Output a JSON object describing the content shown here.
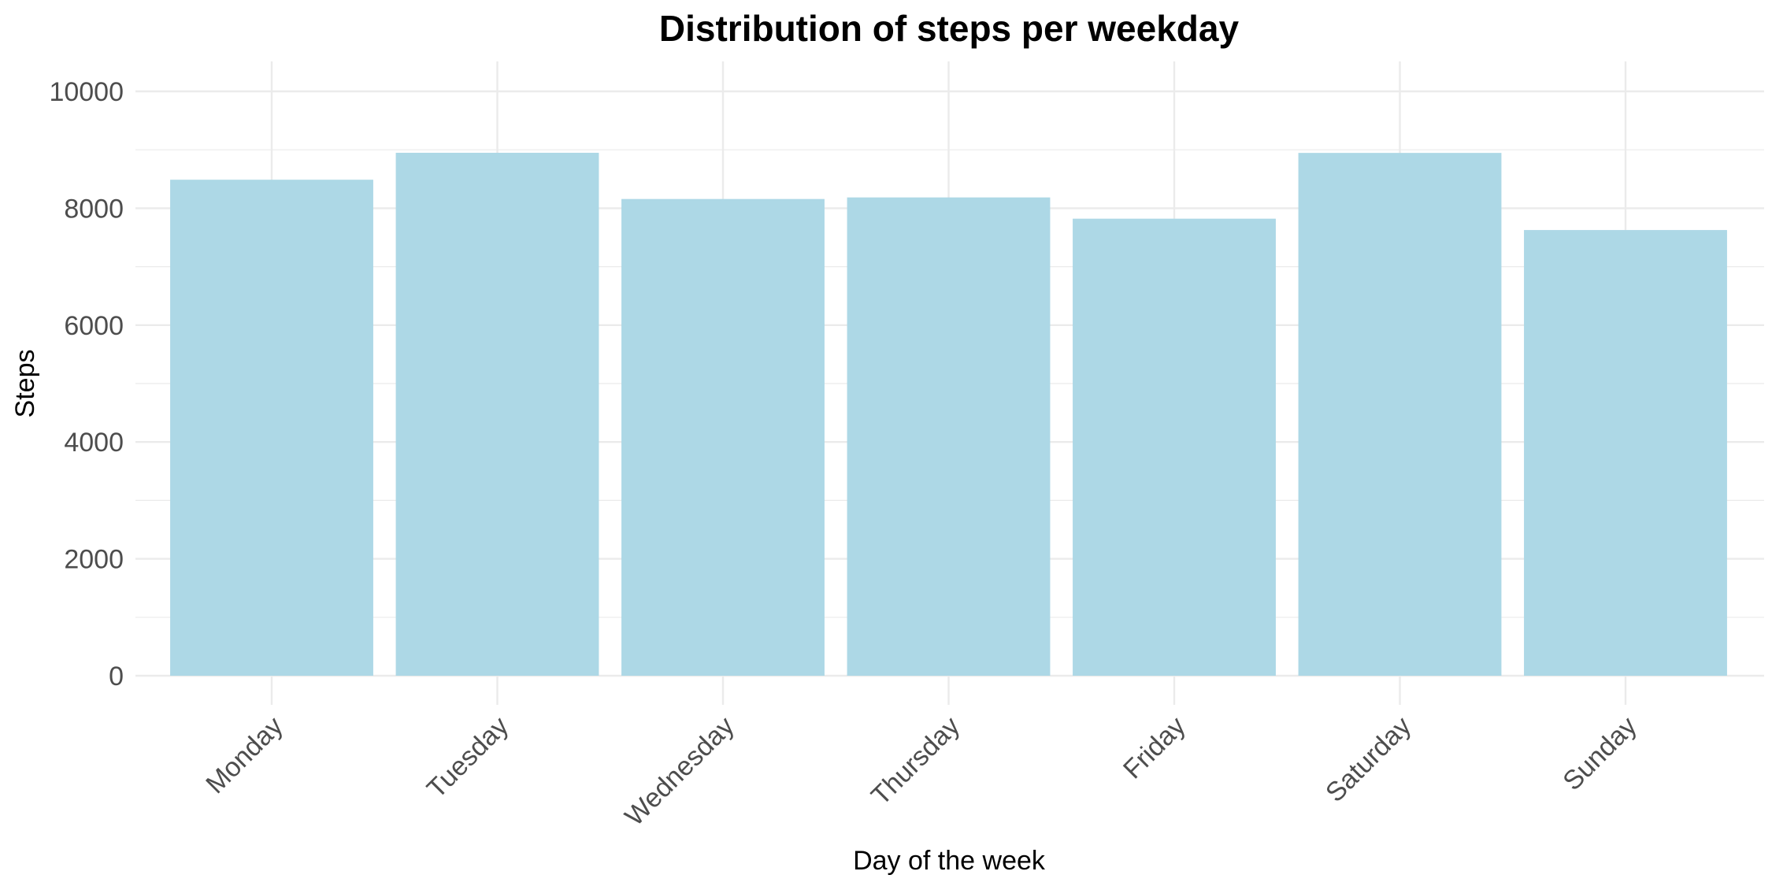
{
  "chart_data": {
    "type": "bar",
    "title": "Distribution of steps per weekday",
    "xlabel": "Day of the week",
    "ylabel": "Steps",
    "categories": [
      "Monday",
      "Tuesday",
      "Wednesday",
      "Thursday",
      "Friday",
      "Saturday",
      "Sunday"
    ],
    "values": [
      8488,
      8949,
      8158,
      8185,
      7821,
      8947,
      7627
    ],
    "ylim": [
      0,
      10000
    ],
    "yticks": [
      "0",
      "2000",
      "4000",
      "6000",
      "8000",
      "10000"
    ],
    "grid": true,
    "legend": "none",
    "bar_color": "#ADD8E6",
    "grid_color": "#EBEBEB"
  }
}
